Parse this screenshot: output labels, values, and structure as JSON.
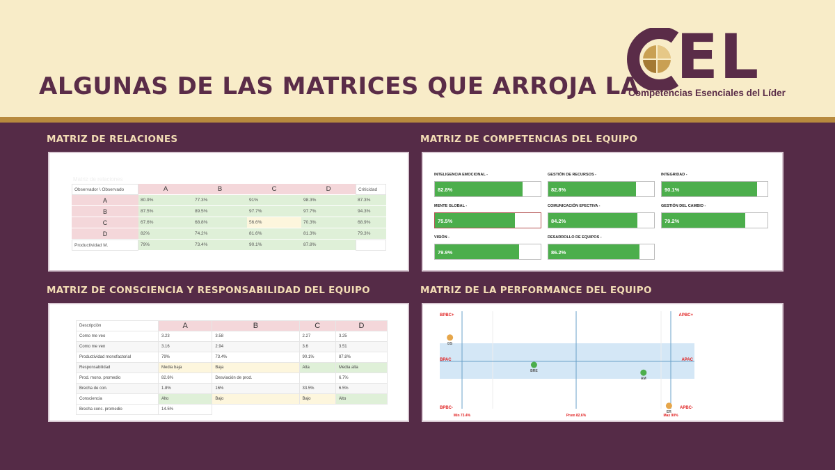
{
  "header": {
    "title": "ALGUNAS DE LAS MATRICES QUE ARROJA LA",
    "logo_text": "CEL",
    "logo_tagline": "Competencias Esenciales del Líder"
  },
  "relaciones": {
    "section_title": "MATRIZ DE RELACIONES",
    "ghost_title": "Matriz de relaciones",
    "corner": "Observador \\ Observado",
    "columns": [
      "A",
      "B",
      "C",
      "D"
    ],
    "criticidad_label": "Criticidad",
    "rows": [
      {
        "label": "A",
        "values": [
          "80.9%",
          "77.3%",
          "91%",
          "98.3%"
        ],
        "crit": "87.3%"
      },
      {
        "label": "B",
        "values": [
          "87.5%",
          "89.5%",
          "97.7%",
          "97.7%"
        ],
        "crit": "94.3%"
      },
      {
        "label": "C",
        "values": [
          "67.6%",
          "68.8%",
          "56.6%",
          "70.3%"
        ],
        "crit": "68.9%"
      },
      {
        "label": "D",
        "values": [
          "82%",
          "74.2%",
          "81.6%",
          "81.3%"
        ],
        "crit": "79.3%"
      }
    ],
    "productividad_label": "Productividad M.",
    "productividad_values": [
      "79%",
      "73.4%",
      "90.1%",
      "87.8%"
    ]
  },
  "competencias": {
    "section_title": "MATRIZ DE COMPETENCIAS DEL EQUIPO",
    "items": [
      {
        "label": "INTELIGENCIA EMOCIONAL -",
        "value": "82.8%",
        "fraction": 0.828
      },
      {
        "label": "GESTIÓN DE RECURSOS -",
        "value": "82.8%",
        "fraction": 0.828
      },
      {
        "label": "INTEGRIDAD -",
        "value": "90.1%",
        "fraction": 0.901
      },
      {
        "label": "MENTE GLOBAL -",
        "value": "75.5%",
        "fraction": 0.755
      },
      {
        "label": "COMUNICACIÓN EFECTIVA -",
        "value": "84.2%",
        "fraction": 0.842
      },
      {
        "label": "GESTIÓN DEL CAMBIO -",
        "value": "79.2%",
        "fraction": 0.792
      },
      {
        "label": "VISIÓN -",
        "value": "79.9%",
        "fraction": 0.799
      },
      {
        "label": "DESARROLLO DE EQUIPOS -",
        "value": "86.2%",
        "fraction": 0.862
      }
    ]
  },
  "consciencia": {
    "section_title": "MATRIZ DE CONSCIENCIA Y RESPONSABILIDAD DEL EQUIPO",
    "desc_label": "Descripción",
    "columns": [
      "A",
      "B",
      "C",
      "D"
    ],
    "rows": [
      {
        "label": "Como me veo",
        "values": [
          "3.23",
          "3.58",
          "2.27",
          "3.25"
        ]
      },
      {
        "label": "Como me ven",
        "values": [
          "3.16",
          "2.94",
          "3.6",
          "3.51"
        ]
      },
      {
        "label": "Productividad monofactorial",
        "values": [
          "79%",
          "73.4%",
          "90.1%",
          "87.8%"
        ]
      },
      {
        "label": "Responsabilidad",
        "values": [
          "Media baja",
          "Baja",
          "Alta",
          "Media alta"
        ]
      },
      {
        "label": "Prod. mono. promedio",
        "values": [
          "82.6%",
          "Desviación de prod.",
          "",
          "6.7%"
        ]
      },
      {
        "label": "Brecha de con.",
        "values": [
          "1.8%",
          "16%",
          "33.5%",
          "6.5%"
        ]
      },
      {
        "label": "Consciencia",
        "values": [
          "Alto",
          "Bajo",
          "Bajo",
          "Alto"
        ]
      },
      {
        "label": "Brecha conc. promedio",
        "values": [
          "14.5%",
          "",
          "",
          ""
        ]
      }
    ]
  },
  "performance": {
    "section_title": "MATRIZ DE LA PERFORMANCE DEL EQUIPO",
    "quadrants": {
      "top_left": "BPBC+",
      "top_right": "APBC+",
      "mid_left": "BPAC",
      "mid_right": "APAC",
      "bottom_left": "BPBC-",
      "bottom_right": "APBC-"
    },
    "axis_labels": {
      "min": "Min 73.4%",
      "avg": "Prom 82.6%",
      "max": "Max 90%"
    },
    "points": [
      {
        "label": "DS",
        "color": "#e6a64a",
        "x": 0.04,
        "y": 0.73
      },
      {
        "label": "BRE",
        "color": "#4cae4c",
        "x": 0.37,
        "y": 0.45
      },
      {
        "label": "AM",
        "color": "#4cae4c",
        "x": 0.8,
        "y": 0.37
      },
      {
        "label": "ER",
        "color": "#e6a64a",
        "x": 0.9,
        "y": 0.03
      }
    ],
    "colors": {
      "quadrant_label": "#e02020",
      "band": "#d4e7f6",
      "axis": "#6aa0c8"
    }
  }
}
